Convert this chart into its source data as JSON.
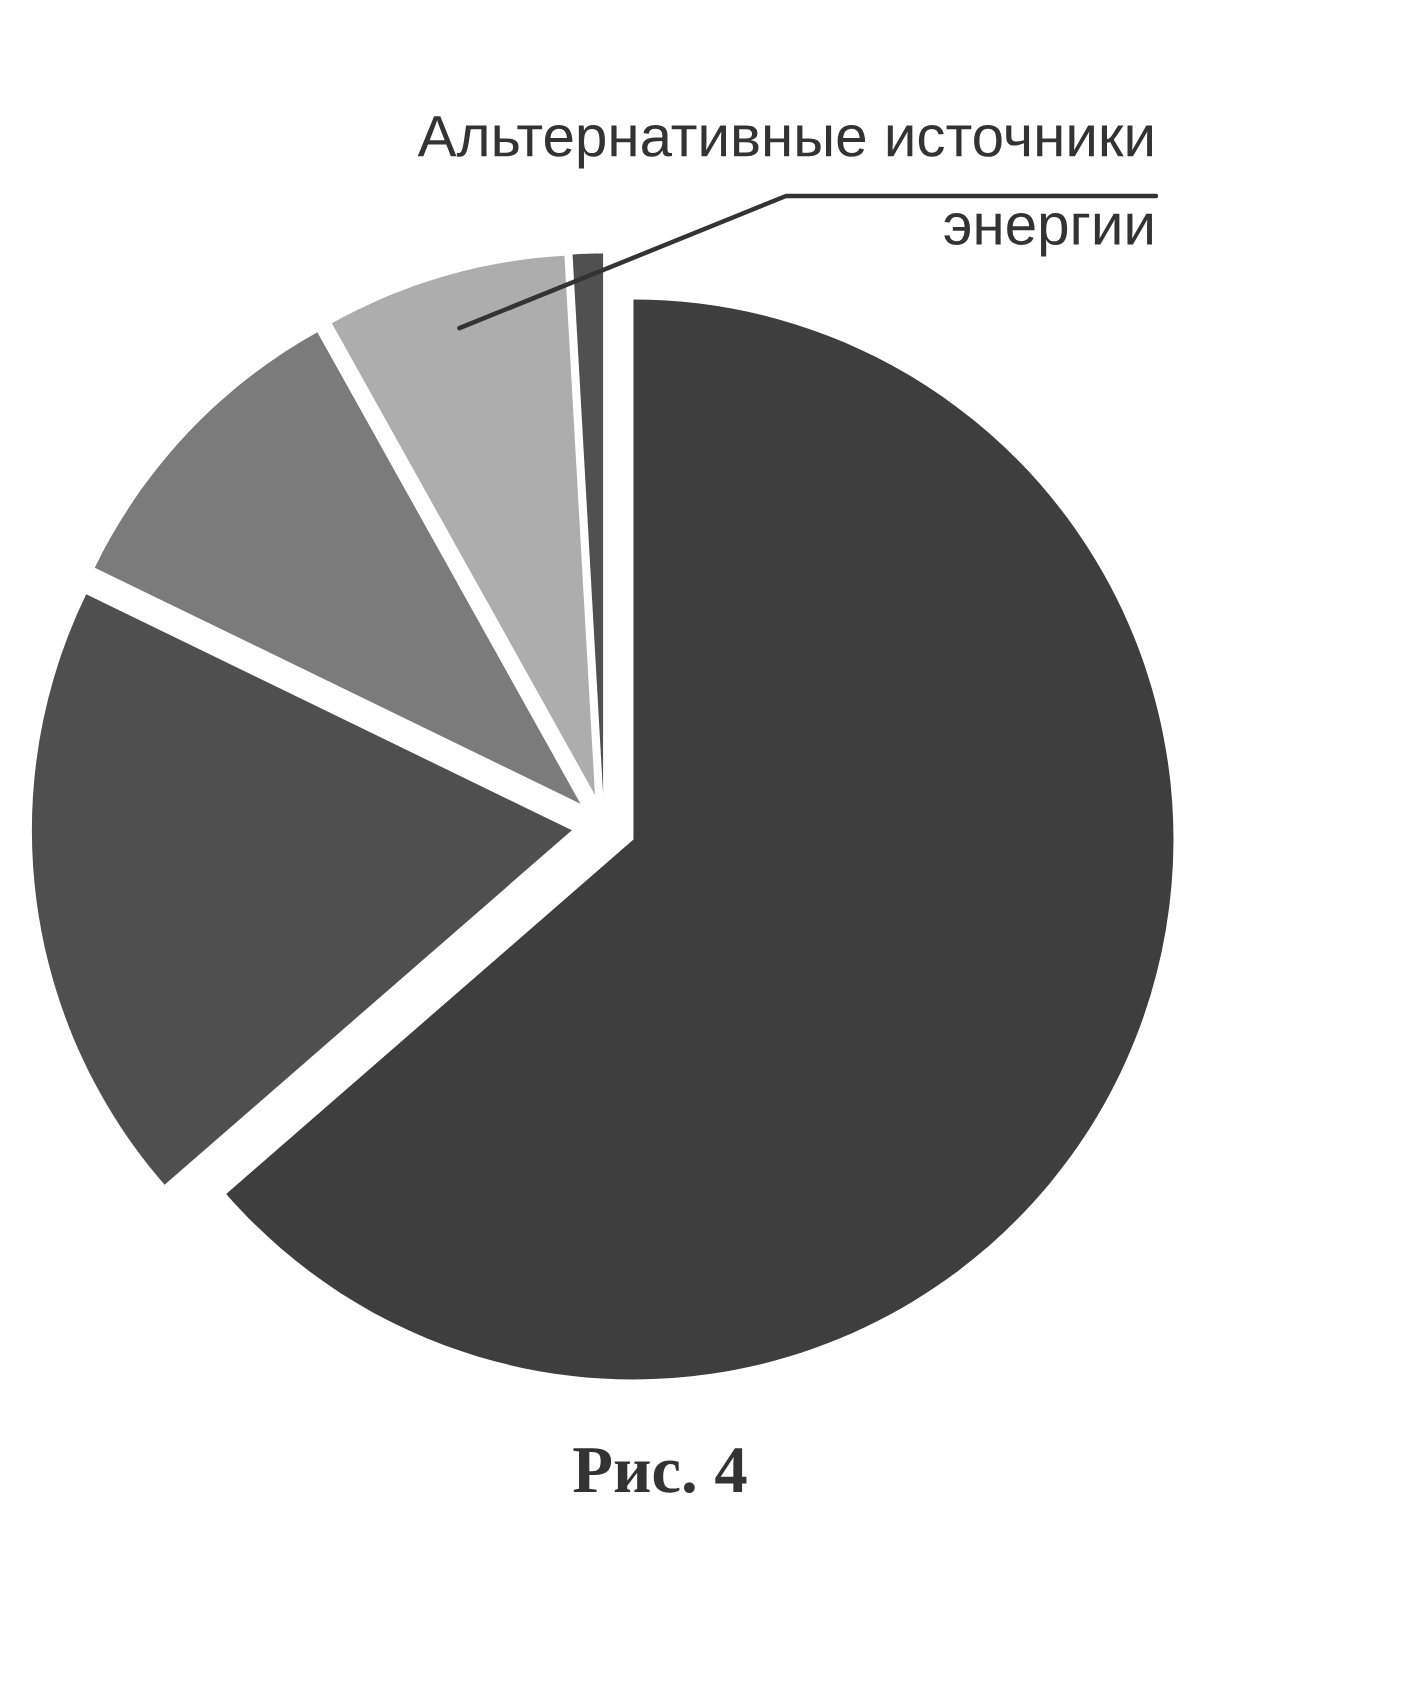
{
  "chart_data": {
    "type": "pie",
    "title": "Рис. 4",
    "categories": [
      null,
      null,
      null,
      "Альтернативные источники\nэнергии",
      null
    ],
    "values": [
      63.6,
      18.6,
      9.7,
      7.2,
      0.9
    ],
    "colors": [
      "#3e3e3e",
      "#4f4f4f",
      "#7b7b7b",
      "#adadad",
      "#505050"
    ]
  }
}
